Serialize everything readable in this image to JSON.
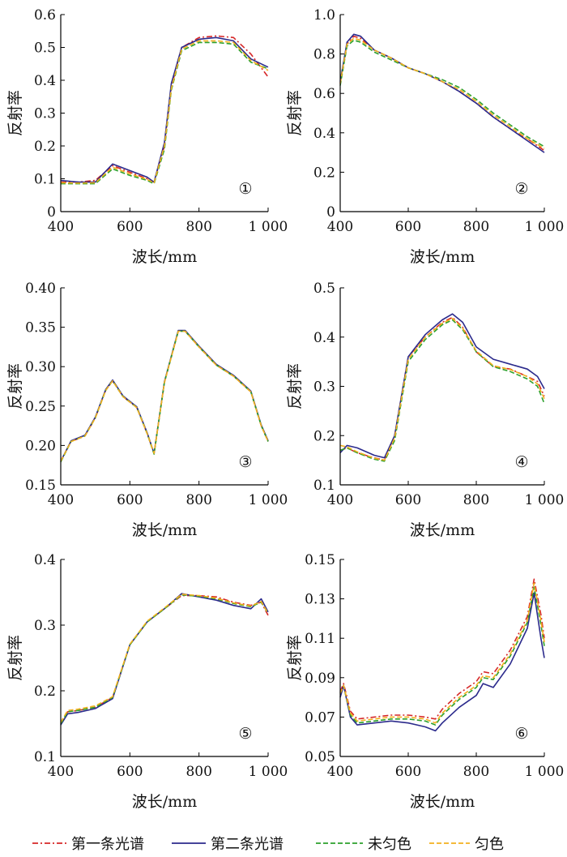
{
  "figure": {
    "legend": [
      {
        "label": "第一条光谱",
        "color": "#d62728",
        "dash": "dashdot"
      },
      {
        "label": "第二条光谱",
        "color": "#2b2a8c",
        "dash": "solid"
      },
      {
        "label": "未匀色",
        "color": "#2ca02c",
        "dash": "dash"
      },
      {
        "label": "匀色",
        "color": "#f2b01e",
        "dash": "dash"
      }
    ]
  },
  "chart_data": [
    {
      "type": "line",
      "panel_label": "①",
      "xlabel": "波长/mm",
      "ylabel": "反射率",
      "xlim": [
        400,
        1000
      ],
      "ylim": [
        0,
        0.6
      ],
      "xticks": [
        400,
        600,
        800,
        1000
      ],
      "xtick_labels": [
        "400",
        "600",
        "800",
        "1 000"
      ],
      "yticks": [
        0,
        0.1,
        0.2,
        0.3,
        0.4,
        0.5,
        0.6
      ],
      "ytick_labels": [
        "0",
        "0.1",
        "0.2",
        "0.3",
        "0.4",
        "0.5",
        "0.6"
      ],
      "x": [
        400,
        450,
        500,
        550,
        600,
        650,
        670,
        700,
        720,
        750,
        800,
        850,
        900,
        950,
        1000
      ],
      "series": [
        {
          "name": "第一条光谱",
          "values": [
            0.09,
            0.09,
            0.095,
            0.14,
            0.12,
            0.1,
            0.09,
            0.2,
            0.38,
            0.5,
            0.53,
            0.535,
            0.53,
            0.48,
            0.41
          ]
        },
        {
          "name": "第二条光谱",
          "values": [
            0.095,
            0.09,
            0.09,
            0.145,
            0.125,
            0.105,
            0.09,
            0.21,
            0.39,
            0.5,
            0.525,
            0.53,
            0.52,
            0.465,
            0.44
          ]
        },
        {
          "name": "未匀色",
          "values": [
            0.085,
            0.085,
            0.085,
            0.13,
            0.11,
            0.095,
            0.085,
            0.19,
            0.37,
            0.49,
            0.515,
            0.515,
            0.51,
            0.455,
            0.435
          ]
        },
        {
          "name": "匀色",
          "values": [
            0.088,
            0.087,
            0.088,
            0.135,
            0.115,
            0.098,
            0.088,
            0.2,
            0.375,
            0.495,
            0.52,
            0.52,
            0.515,
            0.46,
            0.43
          ]
        }
      ]
    },
    {
      "type": "line",
      "panel_label": "②",
      "xlabel": "波长/mm",
      "ylabel": "反射率",
      "xlim": [
        400,
        1000
      ],
      "ylim": [
        0,
        1.0
      ],
      "xticks": [
        400,
        600,
        800,
        1000
      ],
      "xtick_labels": [
        "400",
        "600",
        "800",
        "1 000"
      ],
      "yticks": [
        0,
        0.2,
        0.4,
        0.6,
        0.8,
        1.0
      ],
      "ytick_labels": [
        "0",
        "0.2",
        "0.4",
        "0.6",
        "0.8",
        "1.0"
      ],
      "x": [
        400,
        420,
        440,
        460,
        500,
        550,
        600,
        650,
        700,
        750,
        800,
        850,
        900,
        950,
        1000
      ],
      "series": [
        {
          "name": "第一条光谱",
          "values": [
            0.65,
            0.85,
            0.89,
            0.88,
            0.82,
            0.78,
            0.73,
            0.7,
            0.66,
            0.61,
            0.55,
            0.48,
            0.42,
            0.37,
            0.31
          ]
        },
        {
          "name": "第二条光谱",
          "values": [
            0.66,
            0.86,
            0.9,
            0.89,
            0.82,
            0.78,
            0.73,
            0.7,
            0.66,
            0.61,
            0.55,
            0.48,
            0.42,
            0.36,
            0.3
          ]
        },
        {
          "name": "未匀色",
          "values": [
            0.64,
            0.84,
            0.87,
            0.86,
            0.81,
            0.77,
            0.73,
            0.7,
            0.67,
            0.63,
            0.57,
            0.5,
            0.44,
            0.38,
            0.33
          ]
        },
        {
          "name": "匀色",
          "values": [
            0.65,
            0.85,
            0.88,
            0.87,
            0.82,
            0.78,
            0.73,
            0.7,
            0.66,
            0.62,
            0.56,
            0.49,
            0.43,
            0.37,
            0.32
          ]
        }
      ]
    },
    {
      "type": "line",
      "panel_label": "③",
      "xlabel": "波长/mm",
      "ylabel": "反射率",
      "xlim": [
        400,
        1000
      ],
      "ylim": [
        0.15,
        0.4
      ],
      "xticks": [
        400,
        600,
        800,
        1000
      ],
      "xtick_labels": [
        "400",
        "600",
        "800",
        "1 000"
      ],
      "yticks": [
        0.15,
        0.2,
        0.25,
        0.3,
        0.35,
        0.4
      ],
      "ytick_labels": [
        "0.15",
        "0.20",
        "0.25",
        "0.30",
        "0.35",
        "0.40"
      ],
      "x": [
        400,
        430,
        470,
        500,
        530,
        550,
        580,
        620,
        650,
        670,
        700,
        740,
        760,
        800,
        850,
        900,
        950,
        980,
        1000
      ],
      "series": [
        {
          "name": "第一条光谱",
          "values": [
            0.18,
            0.205,
            0.212,
            0.235,
            0.27,
            0.282,
            0.262,
            0.248,
            0.215,
            0.19,
            0.28,
            0.345,
            0.345,
            0.325,
            0.302,
            0.288,
            0.268,
            0.225,
            0.205
          ]
        },
        {
          "name": "第二条光谱",
          "values": [
            0.18,
            0.206,
            0.213,
            0.236,
            0.271,
            0.283,
            0.263,
            0.249,
            0.216,
            0.19,
            0.281,
            0.346,
            0.346,
            0.326,
            0.303,
            0.289,
            0.269,
            0.226,
            0.206
          ]
        },
        {
          "name": "未匀色",
          "values": [
            0.179,
            0.205,
            0.212,
            0.235,
            0.27,
            0.282,
            0.262,
            0.248,
            0.215,
            0.189,
            0.28,
            0.345,
            0.345,
            0.325,
            0.302,
            0.288,
            0.268,
            0.225,
            0.205
          ]
        },
        {
          "name": "匀色",
          "values": [
            0.18,
            0.205,
            0.212,
            0.235,
            0.27,
            0.282,
            0.262,
            0.248,
            0.215,
            0.19,
            0.28,
            0.345,
            0.345,
            0.325,
            0.302,
            0.288,
            0.268,
            0.225,
            0.205
          ]
        }
      ]
    },
    {
      "type": "line",
      "panel_label": "④",
      "xlabel": "波长/mm",
      "ylabel": "反射率",
      "xlim": [
        400,
        1000
      ],
      "ylim": [
        0.1,
        0.5
      ],
      "xticks": [
        400,
        600,
        800,
        1000
      ],
      "xtick_labels": [
        "400",
        "600",
        "800",
        "1 000"
      ],
      "yticks": [
        0.1,
        0.2,
        0.3,
        0.4,
        0.5
      ],
      "ytick_labels": [
        "0.1",
        "0.2",
        "0.3",
        "0.4",
        "0.5"
      ],
      "x": [
        400,
        420,
        450,
        500,
        530,
        560,
        600,
        650,
        700,
        730,
        760,
        800,
        850,
        900,
        950,
        980,
        1000
      ],
      "series": [
        {
          "name": "第一条光谱",
          "values": [
            0.17,
            0.175,
            0.165,
            0.155,
            0.15,
            0.2,
            0.36,
            0.4,
            0.43,
            0.44,
            0.42,
            0.37,
            0.34,
            0.335,
            0.32,
            0.31,
            0.28
          ]
        },
        {
          "name": "第二条光谱",
          "values": [
            0.165,
            0.18,
            0.175,
            0.16,
            0.155,
            0.2,
            0.36,
            0.405,
            0.435,
            0.447,
            0.43,
            0.38,
            0.355,
            0.345,
            0.335,
            0.32,
            0.295
          ]
        },
        {
          "name": "未匀色",
          "values": [
            0.17,
            0.175,
            0.165,
            0.152,
            0.148,
            0.19,
            0.35,
            0.395,
            0.425,
            0.435,
            0.415,
            0.37,
            0.34,
            0.33,
            0.315,
            0.3,
            0.265
          ]
        },
        {
          "name": "匀色",
          "values": [
            0.18,
            0.177,
            0.167,
            0.154,
            0.15,
            0.195,
            0.355,
            0.4,
            0.428,
            0.438,
            0.418,
            0.372,
            0.342,
            0.334,
            0.32,
            0.305,
            0.275
          ]
        }
      ]
    },
    {
      "type": "line",
      "panel_label": "⑤",
      "xlabel": "波长/mm",
      "ylabel": "反射率",
      "xlim": [
        400,
        1000
      ],
      "ylim": [
        0.1,
        0.4
      ],
      "xticks": [
        400,
        600,
        800,
        1000
      ],
      "xtick_labels": [
        "400",
        "600",
        "800",
        "1 000"
      ],
      "yticks": [
        0.1,
        0.2,
        0.3,
        0.4
      ],
      "ytick_labels": [
        "0.1",
        "0.2",
        "0.3",
        "0.4"
      ],
      "x": [
        400,
        420,
        450,
        500,
        550,
        600,
        650,
        700,
        750,
        800,
        850,
        900,
        950,
        980,
        1000
      ],
      "series": [
        {
          "name": "第一条光谱",
          "values": [
            0.15,
            0.168,
            0.17,
            0.175,
            0.19,
            0.27,
            0.305,
            0.325,
            0.345,
            0.345,
            0.343,
            0.335,
            0.33,
            0.335,
            0.315
          ]
        },
        {
          "name": "第二条光谱",
          "values": [
            0.148,
            0.165,
            0.167,
            0.173,
            0.188,
            0.27,
            0.305,
            0.325,
            0.348,
            0.343,
            0.338,
            0.33,
            0.325,
            0.34,
            0.32
          ]
        },
        {
          "name": "未匀色",
          "values": [
            0.15,
            0.168,
            0.17,
            0.175,
            0.19,
            0.27,
            0.305,
            0.325,
            0.346,
            0.344,
            0.34,
            0.333,
            0.328,
            0.335,
            0.318
          ]
        },
        {
          "name": "匀色",
          "values": [
            0.152,
            0.17,
            0.172,
            0.177,
            0.191,
            0.271,
            0.306,
            0.326,
            0.347,
            0.345,
            0.341,
            0.334,
            0.329,
            0.336,
            0.318
          ]
        }
      ]
    },
    {
      "type": "line",
      "panel_label": "⑥",
      "xlabel": "波长/mm",
      "ylabel": "反射率",
      "xlim": [
        400,
        1000
      ],
      "ylim": [
        0.05,
        0.15
      ],
      "xticks": [
        400,
        600,
        800,
        1000
      ],
      "xtick_labels": [
        "400",
        "600",
        "800",
        "1 000"
      ],
      "yticks": [
        0.05,
        0.07,
        0.09,
        0.11,
        0.13,
        0.15
      ],
      "ytick_labels": [
        "0.05",
        "0.07",
        "0.09",
        "0.11",
        "0.13",
        "0.15"
      ],
      "x": [
        400,
        410,
        430,
        450,
        500,
        550,
        600,
        650,
        680,
        700,
        750,
        800,
        820,
        850,
        900,
        950,
        970,
        990,
        1000
      ],
      "series": [
        {
          "name": "第一条光谱",
          "values": [
            0.083,
            0.087,
            0.073,
            0.069,
            0.07,
            0.071,
            0.071,
            0.07,
            0.069,
            0.074,
            0.082,
            0.088,
            0.093,
            0.092,
            0.104,
            0.121,
            0.14,
            0.122,
            0.11
          ]
        },
        {
          "name": "第二条光谱",
          "values": [
            0.08,
            0.086,
            0.07,
            0.066,
            0.067,
            0.068,
            0.067,
            0.065,
            0.063,
            0.067,
            0.075,
            0.081,
            0.087,
            0.085,
            0.097,
            0.115,
            0.133,
            0.11,
            0.1
          ]
        },
        {
          "name": "未匀色",
          "values": [
            0.082,
            0.086,
            0.071,
            0.067,
            0.068,
            0.069,
            0.069,
            0.068,
            0.066,
            0.071,
            0.079,
            0.085,
            0.09,
            0.089,
            0.101,
            0.118,
            0.136,
            0.117,
            0.106
          ]
        },
        {
          "name": "匀色",
          "values": [
            0.082,
            0.086,
            0.072,
            0.068,
            0.069,
            0.07,
            0.07,
            0.069,
            0.067,
            0.072,
            0.08,
            0.086,
            0.091,
            0.09,
            0.102,
            0.119,
            0.138,
            0.119,
            0.108
          ]
        }
      ]
    }
  ]
}
